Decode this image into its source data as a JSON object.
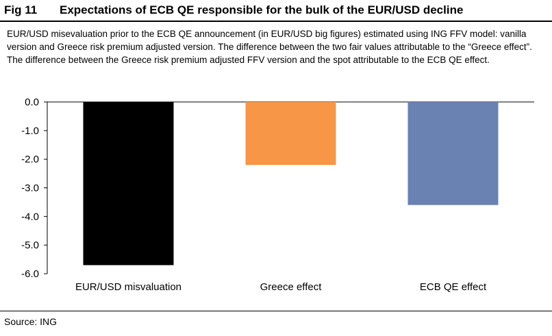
{
  "figure": {
    "number": "Fig 11",
    "title": "Expectations of ECB QE responsible for the bulk of the EUR/USD decline",
    "caption": "EUR/USD misevaluation  prior to the ECB QE announcement (in EUR/USD big figures) estimated using ING FFV model: vanilla version and Greece risk premium adjusted version. The difference between the two fair values attributable to the “Greece effect”. The difference between the Greece risk premium adjusted FFV version and the spot attributable to the ECB QE effect.",
    "source": "Source: ING"
  },
  "chart_data": {
    "type": "bar",
    "categories": [
      "EUR/USD misvaluation",
      "Greece effect",
      "ECB QE effect"
    ],
    "values": [
      -5.7,
      -2.2,
      -3.6
    ],
    "colors": [
      "#000000",
      "#F79646",
      "#6A82B2"
    ],
    "ylim": [
      -6,
      0
    ],
    "yticks": [
      "0.0",
      "-1.0",
      "-2.0",
      "-3.0",
      "-4.0",
      "-5.0",
      "-6.0"
    ],
    "title": "",
    "xlabel": "",
    "ylabel": "",
    "grid": false,
    "legend": "none"
  }
}
